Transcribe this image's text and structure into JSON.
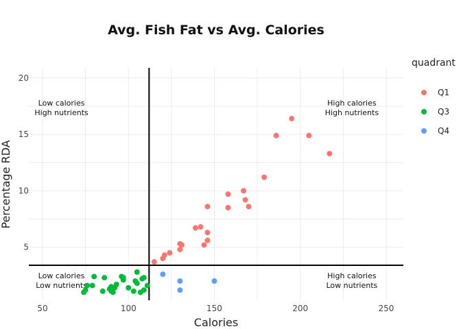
{
  "chart_data": {
    "type": "scatter",
    "title": "Avg. Fish Fat vs Avg. Calories",
    "xlabel": "Calories",
    "ylabel": "Percentage RDA",
    "xlim": [
      42,
      260
    ],
    "ylim": [
      0.3,
      20.9
    ],
    "x_ticks": [
      50,
      100,
      150,
      200,
      250
    ],
    "y_ticks": [
      5,
      10,
      15,
      20
    ],
    "grid": true,
    "reference_lines": {
      "x": 112,
      "y": 3.4
    },
    "legend": {
      "title": "quadrant",
      "position": "right",
      "entries": [
        {
          "name": "Q1",
          "color": "#F8766D"
        },
        {
          "name": "Q3",
          "color": "#00BA38"
        },
        {
          "name": "Q4",
          "color": "#619CFF"
        }
      ]
    },
    "annotations": [
      {
        "lines": [
          "Low calories",
          "High nutrients"
        ],
        "x": 61,
        "y": 17.3
      },
      {
        "lines": [
          "High calories",
          "High nutrients"
        ],
        "x": 230,
        "y": 17.3
      },
      {
        "lines": [
          "Low calories",
          "Low nutrients"
        ],
        "x": 61,
        "y": 2.0
      },
      {
        "lines": [
          "High calories",
          "Low nutrients"
        ],
        "x": 230,
        "y": 2.0
      }
    ],
    "series": [
      {
        "name": "Q1",
        "color": "#F8766D",
        "points": [
          [
            115,
            3.7
          ],
          [
            120,
            4.0
          ],
          [
            121,
            4.3
          ],
          [
            124,
            4.5
          ],
          [
            130,
            4.8
          ],
          [
            130,
            5.3
          ],
          [
            131,
            5.2
          ],
          [
            139,
            6.7
          ],
          [
            142,
            6.8
          ],
          [
            144,
            5.2
          ],
          [
            146,
            5.6
          ],
          [
            146,
            6.3
          ],
          [
            146,
            8.6
          ],
          [
            158,
            8.5
          ],
          [
            158,
            9.7
          ],
          [
            167,
            10.0
          ],
          [
            168,
            9.2
          ],
          [
            170,
            8.6
          ],
          [
            179,
            11.2
          ],
          [
            186,
            14.9
          ],
          [
            195,
            16.4
          ],
          [
            205,
            14.9
          ],
          [
            217,
            13.3
          ]
        ]
      },
      {
        "name": "Q3",
        "color": "#00BA38",
        "points": [
          [
            74,
            1.0
          ],
          [
            75,
            1.2
          ],
          [
            76,
            1.6
          ],
          [
            79,
            1.6
          ],
          [
            80,
            2.4
          ],
          [
            85,
            1.1
          ],
          [
            86,
            2.3
          ],
          [
            89,
            1.3
          ],
          [
            90,
            1.1
          ],
          [
            90,
            1.5
          ],
          [
            91,
            1.0
          ],
          [
            92,
            1.4
          ],
          [
            93,
            1.7
          ],
          [
            96,
            2.4
          ],
          [
            97,
            2.1
          ],
          [
            97,
            2.3
          ],
          [
            100,
            1.4
          ],
          [
            103,
            1.1
          ],
          [
            104,
            2.0
          ],
          [
            105,
            2.8
          ],
          [
            105,
            1.8
          ],
          [
            107,
            1.0
          ],
          [
            108,
            2.2
          ],
          [
            109,
            1.2
          ],
          [
            109,
            2.3
          ],
          [
            111,
            1.6
          ]
        ]
      },
      {
        "name": "Q4",
        "color": "#619CFF",
        "points": [
          [
            120,
            2.6
          ],
          [
            130,
            2.0
          ],
          [
            130,
            1.2
          ],
          [
            150,
            2.0
          ]
        ]
      }
    ]
  }
}
